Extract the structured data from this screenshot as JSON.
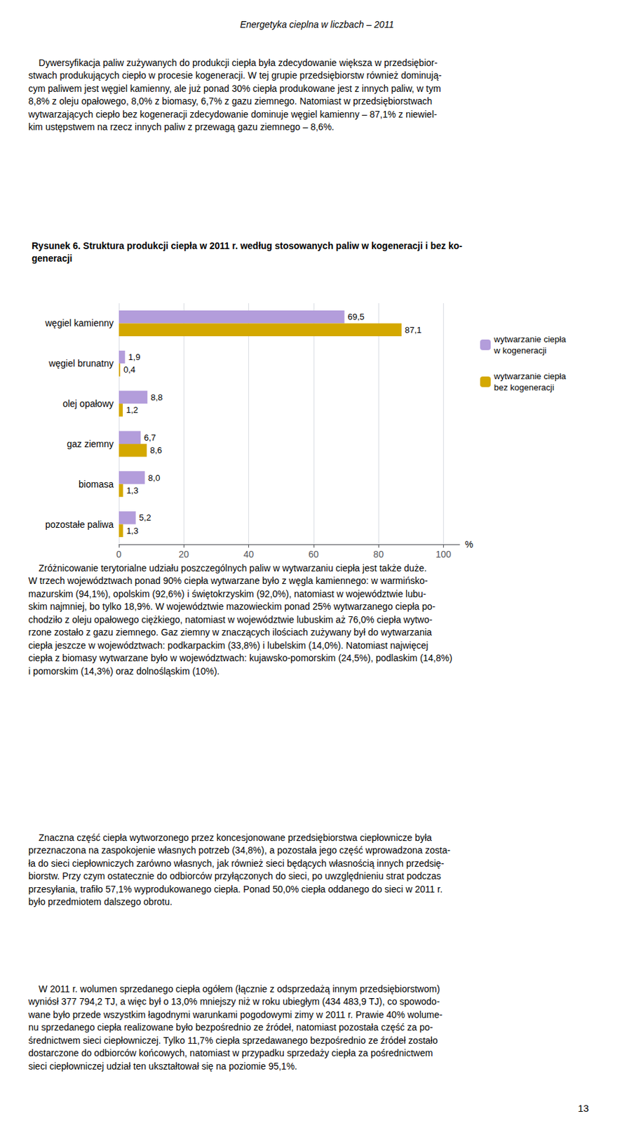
{
  "chart_data": {
    "type": "bar",
    "orientation": "horizontal",
    "title": "Rysunek 6. Struktura produkcji ciepła w 2011 r. według stosowanych paliw w kogeneracji i bez ko-\ngeneracji",
    "xlabel": "%",
    "categories": [
      "węgiel kamienny",
      "węgiel brunatny",
      "olej opałowy",
      "gaz ziemny",
      "biomasa",
      "pozostałe paliwa"
    ],
    "series": [
      {
        "name": "wytwarzanie ciepła\nw kogeneracji",
        "color": "#B39DDB",
        "values": [
          69.5,
          1.9,
          8.8,
          6.7,
          8.0,
          5.2
        ],
        "value_labels": [
          "69,5",
          "1,9",
          "8,8",
          "6,7",
          "8,0",
          "5,2"
        ]
      },
      {
        "name": "wytwarzanie ciepła\nbez kogeneracji",
        "color": "#D4A800",
        "values": [
          87.1,
          0.4,
          1.2,
          8.6,
          1.3,
          1.3
        ],
        "value_labels": [
          "87,1",
          "0,4",
          "1,2",
          "8,6",
          "1,3",
          "1,3"
        ]
      }
    ],
    "xlim": [
      0,
      105
    ],
    "xticks": [
      0,
      20,
      40,
      60,
      80,
      100
    ],
    "grid": true,
    "legend": "right",
    "data_labels": true,
    "annotations": [
      "Energetyka cieplna w liczbach – 2011",
      "    Dywersyfikacja paliw zużywanych do produkcji ciepła była zdecydowanie większa w przedsiębior-\nstwach produkujących ciepło w procesie kogeneracji. W tej grupie przedsiębiorstw również dominują-\ncym paliwem jest węgiel kamienny, ale już ponad 30% ciepła produkowane jest z innych paliw, w tym\n8,8% z oleju opałowego, 8,0% z biomasy, 6,7% z gazu ziemnego. Natomiast w przedsiębiorstwach\nwytwarzających ciepło bez kogeneracji zdecydowanie dominuje węgiel kamienny – 87,1% z niewiel-\nkim ustępstwem na rzecz innych paliw z przewagą gazu ziemnego – 8,6%.",
      "    Zróżnicowanie terytorialne udziału poszczególnych paliw w wytwarzaniu ciepła jest także duże.\nW trzech województwach ponad 90% ciepła wytwarzane było z węgla kamiennego: w warmińsko-\nmazurskim (94,1%), opolskim (92,6%) i świętokrzyskim (92,0%), natomiast w województwie lubu-\nskim najmniej, bo tylko 18,9%. W województwie mazowieckim ponad 25% wytwarzanego ciepła po-\nchodziło z oleju opałowego ciężkiego, natomiast w województwie lubuskim aż 76,0% ciepła wytwo-\nrzone zostało z gazu ziemnego. Gaz ziemny w znaczących ilościach zużywany był do wytwarzania\nciepła jeszcze w województwach: podkarpackim (33,8%) i lubelskim (14,0%). Natomiast najwięcej\nciepła z biomasy wytwarzane było w województwach: kujawsko-pomorskim (24,5%), podlaskim (14,8%)\ni pomorskim (14,3%) oraz dolnośląskim (10%).",
      "    Znaczna część ciepła wytworzonego przez koncesjonowane przedsiębiorstwa ciepłownicze była\nprzeznaczona na zaspokojenie własnych potrzeb (34,8%), a pozostała jego część wprowadzona zosta-\nła do sieci ciepłowniczych zarówno własnych, jak również sieci będących własnością innych przedsię-\nbiorstw. Przy czym ostatecznie do odbiorców przyłączonych do sieci, po uwzględnieniu strat podczas\nprzesyłania, trafiło 57,1% wyprodukowanego ciepła. Ponad 50,0% ciepła oddanego do sieci w 2011 r.\nbyło przedmiotem dalszego obrotu.",
      "    W 2011 r. wolumen sprzedanego ciepła ogółem (łącznie z odsprzedażą innym przedsiębiorstwom)\nwyniósł 377 794,2 TJ, a więc był o 13,0% mniejszy niż w roku ubiegłym (434 483,9 TJ), co spowodo-\nwane było przede wszystkim łagodnymi warunkami pogodowymi zimy w 2011 r. Prawie 40% wolume-\nnu sprzedanego ciepła realizowane było bezpośrednio ze źródeł, natomiast pozostała część za po-\nśrednictwem sieci ciepłowniczej. Tylko 11,7% ciepła sprzedawanego bezpośrednio ze źródeł zostało\ndostarczone do odbiorców końcowych, natomiast w przypadku sprzedaży ciepła za pośrednictwem\nsieci ciepłowniczej udział ten ukształtował się na poziomie 95,1%.",
      "13"
    ]
  }
}
